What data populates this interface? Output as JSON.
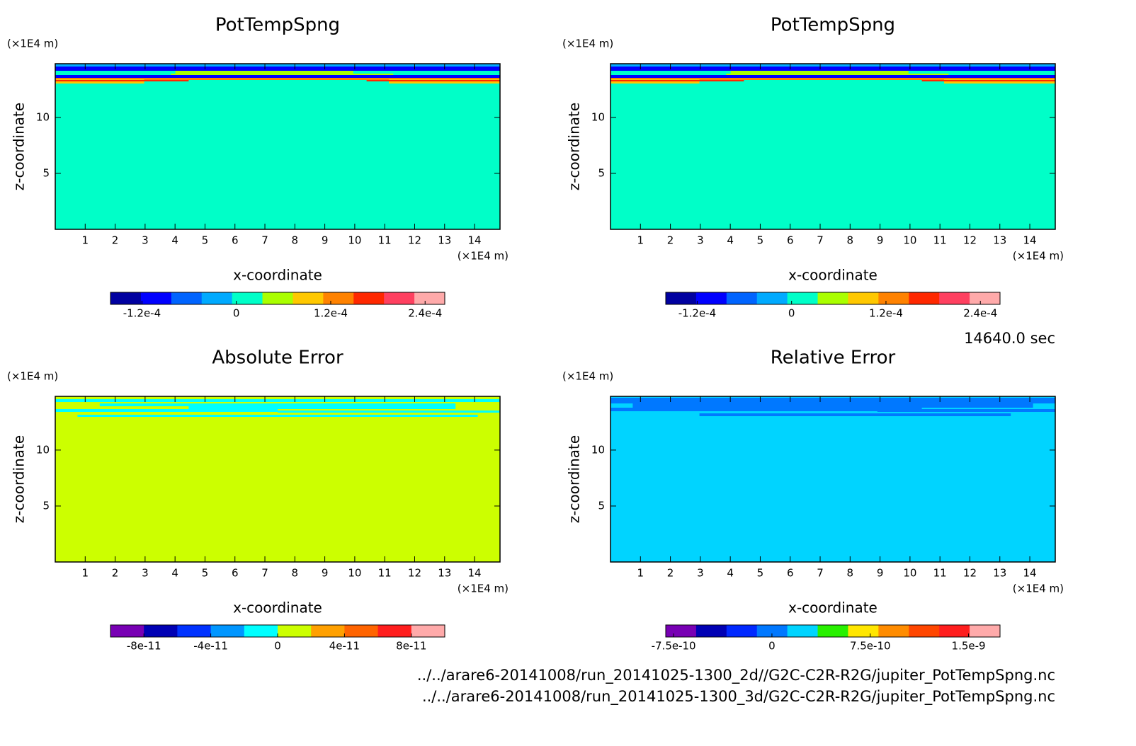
{
  "chart_data": [
    {
      "type": "contour",
      "title": "PotTempSpng",
      "xlabel": "x-coordinate",
      "ylabel": "z-coordinate",
      "xunit": "(×1E4 m)",
      "yunit": "(×1E4 m)",
      "xlim": [
        0,
        14.85
      ],
      "ylim": [
        0,
        14.8
      ],
      "xticks": [
        1,
        2,
        3,
        4,
        5,
        6,
        7,
        8,
        9,
        10,
        11,
        12,
        13,
        14
      ],
      "yticks": [
        5,
        10
      ],
      "colorbar": {
        "colors": [
          "#0000a0",
          "#0000ff",
          "#0064ff",
          "#00aaff",
          "#00ffc8",
          "#aaff00",
          "#ffc800",
          "#ff8200",
          "#ff2800",
          "#ff4060",
          "#ffaaaa"
        ],
        "clim": [
          -0.00016,
          0.000265
        ],
        "ticks": [
          {
            "value": -0.00012,
            "label": "-1.2e-4"
          },
          0,
          {
            "value": 0.00012,
            "label": "1.2e-4"
          },
          {
            "value": 0.00024,
            "label": "2.4e-4"
          }
        ]
      }
    },
    {
      "type": "contour",
      "title": "PotTempSpng",
      "xlabel": "x-coordinate",
      "ylabel": "z-coordinate",
      "xunit": "(×1E4 m)",
      "yunit": "(×1E4 m)",
      "xlim": [
        0,
        14.85
      ],
      "ylim": [
        0,
        14.8
      ],
      "xticks": [
        1,
        2,
        3,
        4,
        5,
        6,
        7,
        8,
        9,
        10,
        11,
        12,
        13,
        14
      ],
      "yticks": [
        5,
        10
      ],
      "colorbar": {
        "colors": [
          "#0000a0",
          "#0000ff",
          "#0064ff",
          "#00aaff",
          "#00ffc8",
          "#aaff00",
          "#ffc800",
          "#ff8200",
          "#ff2800",
          "#ff4060",
          "#ffaaaa"
        ],
        "clim": [
          -0.00016,
          0.000265
        ],
        "ticks": [
          {
            "value": -0.00012,
            "label": "-1.2e-4"
          },
          0,
          {
            "value": 0.00012,
            "label": "1.2e-4"
          },
          {
            "value": 0.00024,
            "label": "2.4e-4"
          }
        ]
      }
    },
    {
      "type": "contour",
      "title": "Absolute Error",
      "xlabel": "x-coordinate",
      "ylabel": "z-coordinate",
      "xunit": "(×1E4 m)",
      "yunit": "(×1E4 m)",
      "xlim": [
        0,
        14.85
      ],
      "ylim": [
        0,
        14.8
      ],
      "xticks": [
        1,
        2,
        3,
        4,
        5,
        6,
        7,
        8,
        9,
        10,
        11,
        12,
        13,
        14
      ],
      "yticks": [
        5,
        10
      ],
      "colorbar": {
        "colors": [
          "#7800b4",
          "#0000b4",
          "#0032ff",
          "#0096ff",
          "#00ffff",
          "#ccff00",
          "#ffa000",
          "#ff6400",
          "#ff1e1e",
          "#ffaaaa"
        ],
        "clim": [
          -1e-10,
          1e-10
        ],
        "ticks": [
          {
            "value": -8e-11,
            "label": "-8e-11"
          },
          {
            "value": -4e-11,
            "label": "-4e-11"
          },
          0,
          {
            "value": 4e-11,
            "label": "4e-11"
          },
          {
            "value": 8e-11,
            "label": "8e-11"
          }
        ]
      }
    },
    {
      "type": "contour",
      "title": "Relative Error",
      "xlabel": "x-coordinate",
      "ylabel": "z-coordinate",
      "xunit": "(×1E4 m)",
      "yunit": "(×1E4 m)",
      "xlim": [
        0,
        14.85
      ],
      "ylim": [
        0,
        14.8
      ],
      "xticks": [
        1,
        2,
        3,
        4,
        5,
        6,
        7,
        8,
        9,
        10,
        11,
        12,
        13,
        14
      ],
      "yticks": [
        5,
        10
      ],
      "colorbar": {
        "colors": [
          "#7800b4",
          "#0000b4",
          "#0028ff",
          "#0078ff",
          "#00d4ff",
          "#28f000",
          "#ffe600",
          "#ff8c00",
          "#ff4600",
          "#ff1e1e",
          "#ffaaaa"
        ],
        "clim": [
          -8.1e-10,
          1.74e-09
        ],
        "ticks": [
          {
            "value": -7.5e-10,
            "label": "-7.5e-10"
          },
          0,
          {
            "value": 7.5e-10,
            "label": "7.5e-10"
          },
          {
            "value": 1.5e-09,
            "label": "1.5e-9"
          }
        ]
      }
    }
  ],
  "time_label": "14640.0 sec",
  "files": [
    "../../arare6-20141008/run_20141025-1300_2d//G2C-C2R-R2G/jupiter_PotTempSpng.nc",
    "../../arare6-20141008/run_20141025-1300_3d/G2C-C2R-R2G/jupiter_PotTempSpng.nc"
  ]
}
